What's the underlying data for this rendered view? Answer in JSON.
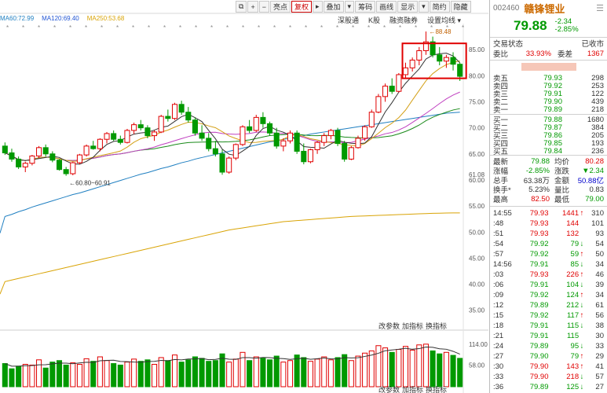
{
  "toolbar": {
    "buttons": [
      "⧉",
      "+",
      "−",
      "亮点",
      "复权",
      "▸",
      "叠加",
      "▾",
      "筹码",
      "画线",
      "显示",
      "▾",
      "简约",
      "隐藏"
    ],
    "active_index": 4
  },
  "subbar": [
    "深股通",
    "K股",
    "融资融券",
    "设置均线 ▾"
  ],
  "ma_legend": [
    {
      "text": "MA60:72.99",
      "color": "#1f7fc1"
    },
    {
      "text": "MA120:69.40",
      "color": "#2457d4"
    },
    {
      "text": "MA250:53.68",
      "color": "#d9a406"
    }
  ],
  "price_axis": [
    "85.00",
    "80.00",
    "75.00",
    "70.00",
    "65.00",
    "61.08",
    "60.00",
    "55.00",
    "50.00",
    "45.00",
    "40.00",
    "35.00"
  ],
  "volume_axis": [
    "114.00",
    "58.00"
  ],
  "high_marker": "88.48",
  "low_marker": "60.80~60.91",
  "indicator_links": [
    "改参数",
    "加指标",
    "换指标"
  ],
  "indicator_links_bottom": [
    "改参数",
    "加指标",
    "换指标"
  ],
  "stock": {
    "code": "002460",
    "name": "赣锋锂业",
    "price": "79.88",
    "change": "-2.34",
    "change_pct": "-2.85%"
  },
  "status": {
    "label": "交易状态",
    "value": "已收市"
  },
  "weibi": {
    "label1": "委比",
    "value1": "33.93%",
    "label2": "委差",
    "value2": "1367"
  },
  "orderbook_sell": [
    {
      "label": "卖五",
      "price": "79.93",
      "vol": "298"
    },
    {
      "label": "卖四",
      "price": "79.92",
      "vol": "253"
    },
    {
      "label": "卖三",
      "price": "79.91",
      "vol": "122"
    },
    {
      "label": "卖二",
      "price": "79.90",
      "vol": "439"
    },
    {
      "label": "卖一",
      "price": "79.89",
      "vol": "218"
    }
  ],
  "orderbook_buy": [
    {
      "label": "买一",
      "price": "79.88",
      "vol": "1680"
    },
    {
      "label": "买二",
      "price": "79.87",
      "vol": "384"
    },
    {
      "label": "买三",
      "price": "79.86",
      "vol": "205"
    },
    {
      "label": "买四",
      "price": "79.85",
      "vol": "193"
    },
    {
      "label": "买五",
      "price": "79.84",
      "vol": "236"
    }
  ],
  "quote_stats": [
    {
      "l1": "最新",
      "v1": "79.88",
      "c1": "green",
      "l2": "均价",
      "v2": "80.28",
      "c2": "red"
    },
    {
      "l1": "涨幅",
      "v1": "-2.85%",
      "c1": "green",
      "l2": "涨跌",
      "v2": "▼2.34",
      "c2": "green"
    },
    {
      "l1": "总手",
      "v1": "63.38万",
      "c1": "black",
      "l2": "金额",
      "v2": "50.88亿",
      "c2": "blue"
    },
    {
      "l1": "换手*",
      "v1": "5.23%",
      "c1": "black",
      "l2": "量比",
      "v2": "0.83",
      "c2": "black"
    },
    {
      "l1": "最高",
      "v1": "82.50",
      "c1": "red",
      "l2": "最低",
      "v2": "79.00",
      "c2": "green"
    }
  ],
  "ticks": [
    {
      "t": "14:55",
      "p": "79.93",
      "pc": "red",
      "v": "1441",
      "a": "↑",
      "ac": "red",
      "n": "310"
    },
    {
      "t": ":48",
      "p": "79.93",
      "pc": "red",
      "v": "144",
      "a": "",
      "ac": "",
      "n": "101"
    },
    {
      "t": ":51",
      "p": "79.93",
      "pc": "red",
      "v": "132",
      "a": "",
      "ac": "",
      "n": "93"
    },
    {
      "t": ":54",
      "p": "79.92",
      "pc": "green",
      "v": "79",
      "a": "↓",
      "ac": "green",
      "n": "54"
    },
    {
      "t": ":57",
      "p": "79.92",
      "pc": "green",
      "v": "59",
      "a": "↑",
      "ac": "red",
      "n": "50"
    },
    {
      "t": "14:56",
      "p": "79.91",
      "pc": "green",
      "v": "85",
      "a": "↓",
      "ac": "green",
      "n": "34"
    },
    {
      "t": ":03",
      "p": "79.93",
      "pc": "red",
      "v": "226",
      "a": "↑",
      "ac": "red",
      "n": "46"
    },
    {
      "t": ":06",
      "p": "79.91",
      "pc": "green",
      "v": "104",
      "a": "↓",
      "ac": "green",
      "n": "39"
    },
    {
      "t": ":09",
      "p": "79.92",
      "pc": "green",
      "v": "124",
      "a": "↑",
      "ac": "red",
      "n": "34"
    },
    {
      "t": ":12",
      "p": "79.89",
      "pc": "green",
      "v": "212",
      "a": "↓",
      "ac": "green",
      "n": "61"
    },
    {
      "t": ":15",
      "p": "79.92",
      "pc": "green",
      "v": "117",
      "a": "↑",
      "ac": "red",
      "n": "56"
    },
    {
      "t": ":18",
      "p": "79.91",
      "pc": "green",
      "v": "115",
      "a": "↓",
      "ac": "green",
      "n": "38"
    },
    {
      "t": ":21",
      "p": "79.91",
      "pc": "green",
      "v": "115",
      "a": "",
      "ac": "",
      "n": "30"
    },
    {
      "t": ":24",
      "p": "79.89",
      "pc": "green",
      "v": "95",
      "a": "↓",
      "ac": "green",
      "n": "33"
    },
    {
      "t": ":27",
      "p": "79.90",
      "pc": "green",
      "v": "79",
      "a": "↑",
      "ac": "red",
      "n": "29"
    },
    {
      "t": ":30",
      "p": "79.90",
      "pc": "red",
      "v": "143",
      "a": "↑",
      "ac": "red",
      "n": "41"
    },
    {
      "t": ":33",
      "p": "79.90",
      "pc": "red",
      "v": "218",
      "a": "↓",
      "ac": "green",
      "n": "57"
    },
    {
      "t": ":36",
      "p": "79.89",
      "pc": "green",
      "v": "125",
      "a": "↓",
      "ac": "green",
      "n": "27"
    }
  ],
  "colors": {
    "up": "#e00000",
    "down": "#009900",
    "ma5": "#333333",
    "ma10": "#d4a017",
    "ma20": "#c040c0",
    "ma30": "#1a8a1a",
    "ma60": "#1f7fc1",
    "ma250": "#d9a406"
  },
  "chart_data": {
    "type": "candlestick",
    "price_ylim": [
      33,
      90
    ],
    "candles": [
      [
        66.5,
        67.2,
        64.8,
        65.2
      ],
      [
        65.2,
        66.0,
        63.5,
        64.0
      ],
      [
        64.0,
        64.5,
        62.1,
        62.5
      ],
      [
        62.5,
        63.5,
        61.5,
        63.2
      ],
      [
        63.2,
        64.8,
        62.8,
        64.6
      ],
      [
        64.6,
        66.5,
        64.2,
        66.2
      ],
      [
        66.2,
        66.8,
        64.5,
        65.0
      ],
      [
        65.0,
        65.5,
        63.4,
        63.8
      ],
      [
        63.8,
        64.0,
        61.8,
        62.0
      ],
      [
        62.0,
        62.5,
        60.8,
        61.2
      ],
      [
        61.2,
        63.5,
        60.9,
        63.3
      ],
      [
        63.3,
        65.0,
        63.0,
        64.8
      ],
      [
        64.8,
        66.8,
        64.5,
        66.5
      ],
      [
        66.5,
        67.5,
        65.8,
        66.0
      ],
      [
        66.0,
        68.0,
        65.5,
        67.8
      ],
      [
        67.8,
        69.2,
        67.0,
        68.9
      ],
      [
        68.9,
        69.5,
        67.5,
        67.8
      ],
      [
        67.8,
        68.5,
        66.8,
        67.2
      ],
      [
        67.2,
        69.8,
        67.0,
        69.5
      ],
      [
        69.5,
        71.0,
        68.8,
        70.6
      ],
      [
        70.6,
        71.5,
        69.5,
        70.0
      ],
      [
        70.0,
        70.5,
        68.0,
        68.5
      ],
      [
        68.5,
        69.5,
        67.5,
        69.2
      ],
      [
        69.2,
        72.5,
        69.0,
        72.2
      ],
      [
        72.2,
        73.5,
        71.2,
        71.8
      ],
      [
        71.8,
        74.8,
        71.5,
        74.5
      ],
      [
        74.5,
        75.2,
        72.5,
        73.0
      ],
      [
        73.0,
        74.0,
        71.0,
        71.5
      ],
      [
        71.5,
        72.0,
        68.5,
        69.0
      ],
      [
        69.0,
        70.5,
        67.5,
        68.0
      ],
      [
        68.0,
        69.0,
        65.5,
        66.0
      ],
      [
        66.0,
        67.5,
        64.5,
        65.0
      ],
      [
        65.0,
        65.8,
        61.0,
        61.5
      ],
      [
        61.5,
        64.5,
        61.2,
        64.2
      ],
      [
        64.2,
        67.0,
        63.8,
        66.8
      ],
      [
        66.8,
        70.5,
        66.5,
        70.2
      ],
      [
        70.2,
        71.5,
        69.0,
        69.5
      ],
      [
        69.5,
        72.5,
        69.2,
        72.0
      ],
      [
        72.0,
        73.0,
        70.0,
        70.8
      ],
      [
        70.8,
        71.2,
        68.5,
        69.0
      ],
      [
        69.0,
        70.0,
        66.0,
        66.5
      ],
      [
        66.5,
        68.0,
        65.5,
        67.5
      ],
      [
        67.5,
        69.5,
        67.0,
        69.0
      ],
      [
        69.0,
        69.5,
        65.0,
        65.5
      ],
      [
        65.5,
        67.0,
        63.0,
        63.5
      ],
      [
        63.5,
        66.0,
        63.2,
        65.8
      ],
      [
        65.8,
        67.5,
        65.0,
        67.2
      ],
      [
        67.2,
        69.0,
        66.5,
        68.5
      ],
      [
        68.5,
        69.8,
        67.8,
        69.5
      ],
      [
        69.5,
        70.0,
        66.5,
        67.0
      ],
      [
        67.0,
        67.5,
        63.5,
        64.0
      ],
      [
        64.0,
        66.5,
        63.8,
        66.2
      ],
      [
        66.2,
        68.5,
        66.0,
        68.0
      ],
      [
        68.0,
        70.5,
        67.5,
        70.2
      ],
      [
        70.2,
        73.5,
        70.0,
        73.0
      ],
      [
        73.0,
        76.5,
        72.8,
        76.0
      ],
      [
        76.0,
        78.5,
        75.0,
        78.0
      ],
      [
        78.0,
        79.5,
        76.5,
        77.0
      ],
      [
        77.0,
        80.5,
        76.8,
        80.2
      ],
      [
        80.2,
        82.5,
        79.5,
        81.5
      ],
      [
        81.5,
        83.5,
        80.8,
        83.0
      ],
      [
        83.0,
        85.5,
        82.0,
        84.8
      ],
      [
        84.8,
        88.48,
        84.0,
        86.5
      ],
      [
        86.5,
        87.5,
        83.5,
        84.0
      ],
      [
        84.0,
        85.5,
        82.0,
        82.8
      ],
      [
        82.8,
        84.0,
        81.5,
        83.5
      ],
      [
        83.5,
        84.5,
        81.0,
        82.2
      ],
      [
        82.2,
        82.5,
        79.0,
        79.88
      ]
    ],
    "volumes": [
      62,
      48,
      55,
      60,
      58,
      72,
      50,
      66,
      70,
      58,
      64,
      60,
      75,
      68,
      80,
      70,
      62,
      58,
      66,
      74,
      68,
      72,
      60,
      78,
      70,
      85,
      66,
      72,
      80,
      76,
      68,
      70,
      88,
      66,
      74,
      92,
      70,
      80,
      76,
      72,
      82,
      66,
      70,
      85,
      78,
      68,
      74,
      80,
      72,
      78,
      86,
      70,
      82,
      90,
      96,
      110,
      104,
      92,
      100,
      108,
      98,
      112,
      114,
      96,
      88,
      92,
      84,
      76
    ],
    "ma60_line": [
      53,
      53.4,
      53.9,
      54.3,
      54.8,
      55.2,
      55.6,
      56.0,
      56.4,
      56.8,
      57.2,
      57.5,
      57.9,
      58.3,
      58.7,
      59.1,
      59.5,
      59.9,
      60.3,
      60.7,
      61.1,
      61.4,
      61.8,
      62.2,
      62.5,
      62.9,
      63.3,
      63.6,
      64.0,
      64.3,
      64.6,
      64.9,
      65.2,
      65.5,
      65.8,
      66.1,
      66.4,
      66.7,
      67.0,
      67.3,
      67.5,
      67.8,
      68.0,
      68.3,
      68.5,
      68.8,
      69.0,
      69.2,
      69.4,
      69.6,
      69.8,
      70.0,
      70.2,
      70.4,
      70.6,
      70.8,
      71.0,
      71.2,
      71.4,
      71.6,
      71.8,
      72.0,
      72.2,
      72.4,
      72.6,
      72.8,
      72.9,
      72.99
    ],
    "ma250_line": [
      40.5,
      40.8,
      41.1,
      41.4,
      41.7,
      42.0,
      42.3,
      42.6,
      42.9,
      43.2,
      43.5,
      43.8,
      44.1,
      44.4,
      44.7,
      45.0,
      45.3,
      45.6,
      45.9,
      46.2,
      46.5,
      46.8,
      47.1,
      47.4,
      47.7,
      48.0,
      48.3,
      48.6,
      48.9,
      49.2,
      49.5,
      49.8,
      50.1,
      50.4,
      50.6,
      50.8,
      51.0,
      51.2,
      51.4,
      51.6,
      51.8,
      52.0,
      52.1,
      52.2,
      52.3,
      52.4,
      52.5,
      52.6,
      52.7,
      52.8,
      52.9,
      53.0,
      53.05,
      53.1,
      53.15,
      53.2,
      53.25,
      53.3,
      53.35,
      53.4,
      53.45,
      53.5,
      53.55,
      53.6,
      53.63,
      53.65,
      53.67,
      53.68
    ]
  }
}
